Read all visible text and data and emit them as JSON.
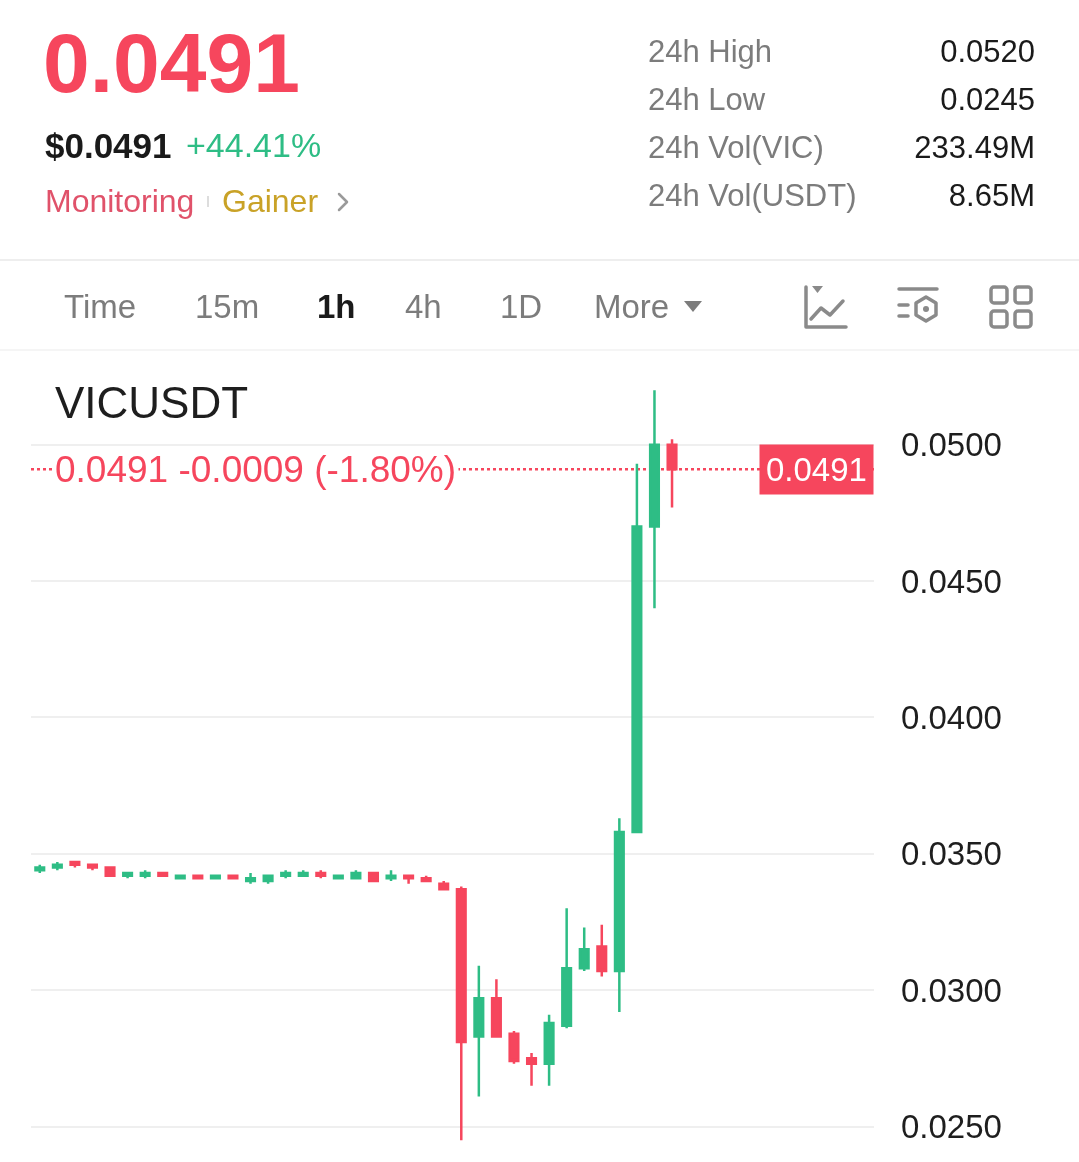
{
  "chart_data": [
    {
      "type": "other",
      "title": "0.0491",
      "annotations": [
        "$0.0491",
        "+44.41%",
        "Monitoring",
        "Gainer",
        "24h High",
        "0.0520",
        "24h Low",
        "0.0245",
        "24h Vol(VIC)",
        "233.49M",
        "24h Vol(USDT)",
        "8.65M",
        "Time",
        "15m",
        "1h",
        "4h",
        "1D",
        "More"
      ]
    },
    {
      "type": "candlestick",
      "title": "VICUSDT",
      "categories": [
        null,
        null,
        null,
        null,
        null,
        null,
        null,
        null,
        null,
        null,
        null,
        null,
        null,
        null,
        null,
        null,
        null,
        null,
        null,
        null,
        null,
        null,
        null,
        null,
        null,
        null,
        null,
        null,
        null,
        null,
        null,
        null,
        null,
        null,
        null,
        null,
        null,
        null,
        null,
        null,
        null,
        null,
        null,
        null,
        null,
        null,
        null,
        null
      ],
      "ohlc": [
        [
          0.0344,
          0.0346,
          0.0343,
          0.0345
        ],
        [
          0.0345,
          0.0347,
          0.0344,
          0.0346
        ],
        [
          0.0347,
          0.0347,
          0.0345,
          0.0346
        ],
        [
          0.0346,
          0.0346,
          0.0344,
          0.0345
        ],
        [
          0.0345,
          0.0345,
          0.0342,
          0.0342
        ],
        [
          0.0342,
          0.0343,
          0.0341,
          0.0343
        ],
        [
          0.0342,
          0.0344,
          0.0341,
          0.0343
        ],
        [
          0.0343,
          0.0343,
          0.0342,
          0.0342
        ],
        [
          0.0341,
          0.0342,
          0.0341,
          0.0342
        ],
        [
          0.0342,
          0.0342,
          0.0341,
          0.0341
        ],
        [
          0.0341,
          0.0342,
          0.0341,
          0.0342
        ],
        [
          0.0342,
          0.0342,
          0.0341,
          0.0341
        ],
        [
          0.034,
          0.0343,
          0.0339,
          0.0341
        ],
        [
          0.034,
          0.0342,
          0.0339,
          0.0342
        ],
        [
          0.0342,
          0.0344,
          0.0341,
          0.0343
        ],
        [
          0.0342,
          0.0344,
          0.0342,
          0.0343
        ],
        [
          0.0343,
          0.0344,
          0.0341,
          0.0342
        ],
        [
          0.0341,
          0.0342,
          0.0341,
          0.0342
        ],
        [
          0.0341,
          0.0344,
          0.0341,
          0.0343
        ],
        [
          0.0343,
          0.0343,
          0.034,
          0.034
        ],
        [
          0.0341,
          0.0344,
          0.034,
          0.0342
        ],
        [
          0.0342,
          0.0342,
          0.0339,
          0.0341
        ],
        [
          0.0341,
          0.0342,
          0.034,
          0.034
        ],
        [
          0.0339,
          0.034,
          0.0337,
          0.0337
        ],
        [
          0.0337,
          0.0338,
          0.0245,
          0.0281
        ],
        [
          0.0283,
          0.0309,
          0.0261,
          0.0297
        ],
        [
          0.0297,
          0.0304,
          0.0283,
          0.0283
        ],
        [
          0.0284,
          0.0285,
          0.0273,
          0.0274
        ],
        [
          0.0275,
          0.0277,
          0.0265,
          0.0273
        ],
        [
          0.0273,
          0.0291,
          0.0265,
          0.0288
        ],
        [
          0.0287,
          0.033,
          0.0286,
          0.0308
        ],
        [
          0.0308,
          0.0323,
          0.0307,
          0.0315
        ],
        [
          0.0316,
          0.0324,
          0.0305,
          0.0307
        ],
        [
          0.0307,
          0.0363,
          0.0292,
          0.0358
        ],
        [
          0.0358,
          0.0493,
          0.0358,
          0.047
        ],
        [
          0.047,
          0.052,
          0.044,
          0.05
        ],
        [
          0.05,
          0.0502,
          0.0477,
          0.0491
        ],
        null,
        null,
        null,
        null,
        null,
        null,
        null,
        null,
        null,
        null,
        null
      ],
      "colors": [
        "#2ebd85",
        "#2ebd85",
        "#f6465d",
        "#f6465d",
        "#f6465d",
        "#2ebd85",
        "#2ebd85",
        "#f6465d",
        "#2ebd85",
        "#f6465d",
        "#2ebd85",
        "#f6465d",
        "#2ebd85",
        "#2ebd85",
        "#2ebd85",
        "#2ebd85",
        "#f6465d",
        "#2ebd85",
        "#2ebd85",
        "#f6465d",
        "#2ebd85",
        "#f6465d",
        "#f6465d",
        "#f6465d",
        "#f6465d",
        "#2ebd85",
        "#f6465d",
        "#f6465d",
        "#f6465d",
        "#2ebd85",
        "#2ebd85",
        "#2ebd85",
        "#f6465d",
        "#2ebd85",
        "#2ebd85",
        "#2ebd85",
        "#f6465d",
        null,
        null,
        null,
        null,
        null,
        null,
        null,
        null,
        null,
        null,
        null
      ],
      "ylim": [
        0.0237,
        0.0534
      ],
      "yticks": [
        {
          "value": 0.025,
          "label": "0.0250"
        },
        {
          "value": 0.03,
          "label": "0.0300"
        },
        {
          "value": 0.035,
          "label": "0.0350"
        },
        {
          "value": 0.04,
          "label": "0.0400"
        },
        {
          "value": 0.045,
          "label": "0.0450"
        },
        {
          "value": 0.05,
          "label": "0.0500"
        }
      ],
      "grid": "y",
      "tick_labels": "y",
      "ref_lines": [
        {
          "axis": "y",
          "value": 0.0491,
          "label": "0.0491 -0.0009 (-1.80%)",
          "color": "#f6465d",
          "line_style": "dotted"
        }
      ],
      "annotations": [
        {
          "text": "0.0491",
          "y": 0.0491
        }
      ]
    }
  ]
}
